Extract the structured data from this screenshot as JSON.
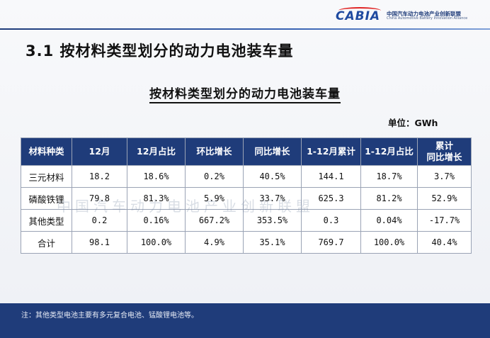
{
  "logo": {
    "wordmark": "CABIA",
    "name_cn": "中国汽车动力电池产业创新联盟",
    "name_en": "China Automotive Battery Innovation Alliance"
  },
  "section_title": "3.1 按材料类型划分的动力电池装车量",
  "chart_title": "按材料类型划分的动力电池装车量",
  "unit": "单位：GWh",
  "watermark": "中国汽车动力电池产业创新联盟",
  "table": {
    "headers": [
      "材料种类",
      "12月",
      "12月占比",
      "环比增长",
      "同比增长",
      "1-12月累计",
      "1-12月占比",
      [
        "累计",
        "同比增长"
      ]
    ],
    "rows": [
      [
        "三元材料",
        "18.2",
        "18.6%",
        "0.2%",
        "40.5%",
        "144.1",
        "18.7%",
        "3.7%"
      ],
      [
        "磷酸铁锂",
        "79.8",
        "81.3%",
        "5.9%",
        "33.7%",
        "625.3",
        "81.2%",
        "52.9%"
      ],
      [
        "其他类型",
        "0.2",
        "0.16%",
        "667.2%",
        "353.5%",
        "0.3",
        "0.04%",
        "-17.7%"
      ],
      [
        "合计",
        "98.1",
        "100.0%",
        "4.9%",
        "35.1%",
        "769.7",
        "100.0%",
        "40.4%"
      ]
    ]
  },
  "footer_note": "注：其他类型电池主要有多元复合电池、锰酸锂电池等。",
  "colors": {
    "header_bg": "#1f3c7a",
    "footer_bg": "#1f3c7a",
    "logo_red": "#e02424"
  }
}
